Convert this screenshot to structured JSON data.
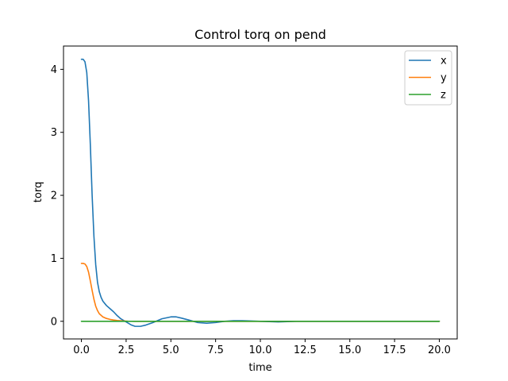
{
  "chart_data": {
    "type": "line",
    "title": "Control torq on pend",
    "xlabel": "time",
    "ylabel": "torq",
    "xlim": [
      -1.0,
      21.0
    ],
    "ylim": [
      -0.28,
      4.37
    ],
    "xticks": [
      0.0,
      2.5,
      5.0,
      7.5,
      10.0,
      12.5,
      15.0,
      17.5,
      20.0
    ],
    "xtick_labels": [
      "0.0",
      "2.5",
      "5.0",
      "7.5",
      "10.0",
      "12.5",
      "15.0",
      "17.5",
      "20.0"
    ],
    "yticks": [
      0,
      1,
      2,
      3,
      4
    ],
    "ytick_labels": [
      "0",
      "1",
      "2",
      "3",
      "4"
    ],
    "grid": false,
    "legend_position": "top-right",
    "series": [
      {
        "name": "x",
        "color": "#1f77b4",
        "x": [
          0,
          0.1,
          0.2,
          0.3,
          0.4,
          0.5,
          0.6,
          0.7,
          0.8,
          0.9,
          1.0,
          1.1,
          1.2,
          1.4,
          1.6,
          1.8,
          2.0,
          2.2,
          2.5,
          2.8,
          3.0,
          3.3,
          3.6,
          4.0,
          4.5,
          5.0,
          5.3,
          5.6,
          6.0,
          6.5,
          7.0,
          7.5,
          8.0,
          8.5,
          9.0,
          10.0,
          11.0,
          12.0,
          13.0,
          14.0,
          15.0,
          16.0,
          17.0,
          18.0,
          19.0,
          20.0
        ],
        "y": [
          4.16,
          4.16,
          4.12,
          3.95,
          3.5,
          2.8,
          2.0,
          1.35,
          0.9,
          0.62,
          0.47,
          0.38,
          0.32,
          0.25,
          0.2,
          0.15,
          0.09,
          0.04,
          -0.01,
          -0.06,
          -0.08,
          -0.08,
          -0.06,
          -0.02,
          0.04,
          0.07,
          0.07,
          0.05,
          0.02,
          -0.02,
          -0.03,
          -0.02,
          0.0,
          0.01,
          0.01,
          0.0,
          -0.01,
          0.0,
          0.0,
          0.0,
          0.0,
          0.0,
          0.0,
          0.0,
          0.0,
          0.0
        ]
      },
      {
        "name": "y",
        "color": "#ff7f0e",
        "x": [
          0,
          0.1,
          0.2,
          0.3,
          0.4,
          0.5,
          0.6,
          0.7,
          0.8,
          0.9,
          1.0,
          1.2,
          1.4,
          1.6,
          1.8,
          2.0,
          2.3,
          2.6,
          3.0,
          4.0,
          5.0,
          6.0,
          8.0,
          10.0,
          12.0,
          14.0,
          16.0,
          18.0,
          20.0
        ],
        "y": [
          0.92,
          0.92,
          0.91,
          0.87,
          0.78,
          0.64,
          0.49,
          0.35,
          0.24,
          0.17,
          0.12,
          0.07,
          0.045,
          0.03,
          0.02,
          0.012,
          0.006,
          0.002,
          0.0,
          0.0,
          0.0,
          0.0,
          0.0,
          0.0,
          0.0,
          0.0,
          0.0,
          0.0,
          0.0
        ]
      },
      {
        "name": "z",
        "color": "#2ca02c",
        "x": [
          0,
          2.5,
          5.0,
          7.5,
          10.0,
          12.5,
          15.0,
          17.5,
          20.0
        ],
        "y": [
          0.0,
          0.0,
          0.0,
          0.0,
          0.0,
          0.0,
          0.0,
          0.0,
          0.0
        ]
      }
    ]
  }
}
